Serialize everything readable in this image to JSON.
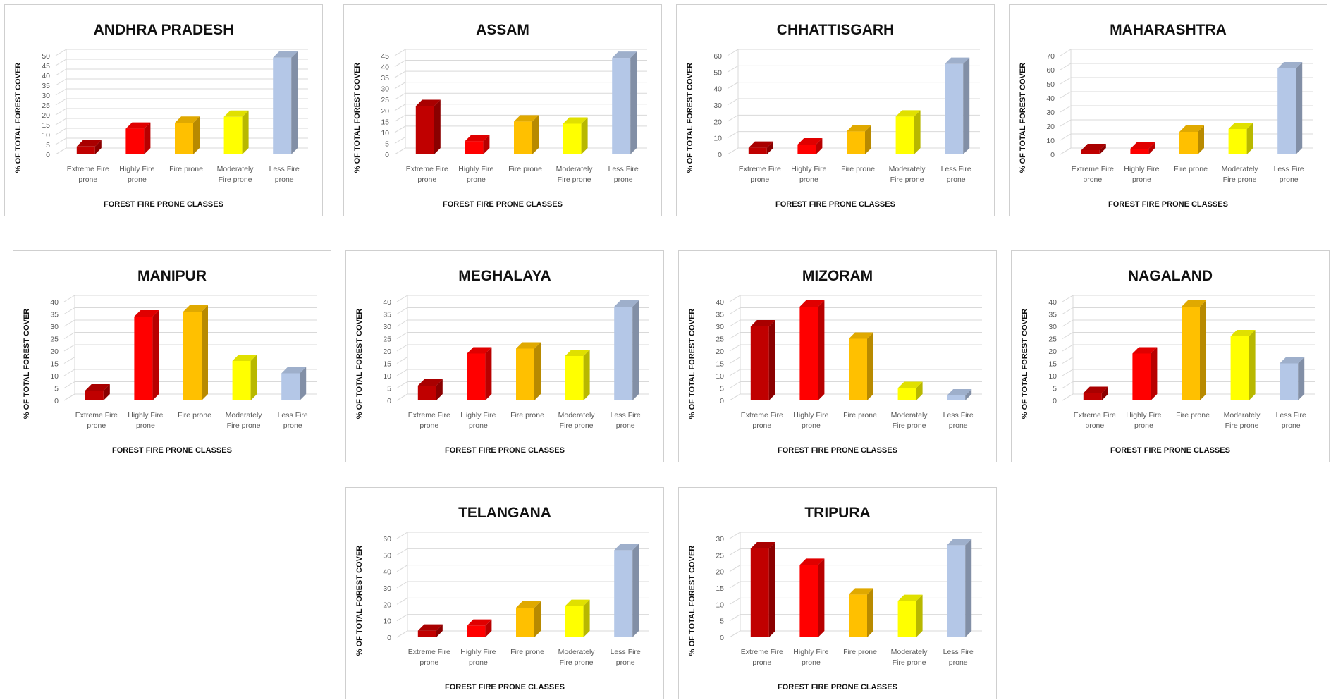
{
  "chart_data": [
    {
      "type": "bar",
      "title": "ANDHRA PRADESH",
      "ylabel": "% OF TOTAL FOREST COVER",
      "xlabel": "FOREST FIRE PRONE CLASSES",
      "categories": [
        "Extreme Fire prone",
        "Highly Fire prone",
        "Fire prone",
        "Moderately Fire prone",
        "Less Fire prone"
      ],
      "values": [
        4,
        13,
        16,
        19,
        49
      ],
      "yticks": [
        0,
        5,
        10,
        15,
        20,
        25,
        30,
        35,
        40,
        45,
        50
      ],
      "ylim": [
        0,
        50
      ]
    },
    {
      "type": "bar",
      "title": "ASSAM",
      "ylabel": "% OF TOTAL FOREST COVER",
      "xlabel": "FOREST FIRE PRONE CLASSES",
      "categories": [
        "Extreme Fire prone",
        "Highly Fire prone",
        "Fire prone",
        "Moderately Fire prone",
        "Less Fire prone"
      ],
      "values": [
        22,
        6,
        15,
        14,
        44
      ],
      "yticks": [
        0,
        5,
        10,
        15,
        20,
        25,
        30,
        35,
        40,
        45
      ],
      "ylim": [
        0,
        45
      ]
    },
    {
      "type": "bar",
      "title": "CHHATTISGARH",
      "ylabel": "% OF TOTAL FOREST COVER",
      "xlabel": "FOREST FIRE PRONE CLASSES",
      "categories": [
        "Extreme Fire prone",
        "Highly Fire prone",
        "Fire prone",
        "Moderately Fire prone",
        "Less Fire prone"
      ],
      "values": [
        4,
        6,
        14,
        23,
        55
      ],
      "yticks": [
        0,
        10,
        20,
        30,
        40,
        50,
        60
      ],
      "ylim": [
        0,
        60
      ]
    },
    {
      "type": "bar",
      "title": "MAHARASHTRA",
      "ylabel": "% OF TOTAL FOREST COVER",
      "xlabel": "FOREST FIRE PRONE CLASSES",
      "categories": [
        "Extreme Fire prone",
        "Highly Fire prone",
        "Fire prone",
        "Moderately Fire prone",
        "Less Fire prone"
      ],
      "values": [
        3,
        4,
        16,
        18,
        61
      ],
      "yticks": [
        0,
        10,
        20,
        30,
        40,
        50,
        60,
        70
      ],
      "ylim": [
        0,
        70
      ]
    },
    {
      "type": "bar",
      "title": "MANIPUR",
      "ylabel": "% OF TOTAL FOREST COVER",
      "xlabel": "FOREST FIRE PRONE CLASSES",
      "categories": [
        "Extreme Fire prone",
        "Highly Fire prone",
        "Fire prone",
        "Moderately Fire prone",
        "Less Fire prone"
      ],
      "values": [
        4,
        34,
        36,
        16,
        11
      ],
      "yticks": [
        0,
        5,
        10,
        15,
        20,
        25,
        30,
        35,
        40
      ],
      "ylim": [
        0,
        40
      ]
    },
    {
      "type": "bar",
      "title": "MEGHALAYA",
      "ylabel": "% OF TOTAL FOREST COVER",
      "xlabel": "FOREST FIRE PRONE CLASSES",
      "categories": [
        "Extreme Fire prone",
        "Highly Fire prone",
        "Fire prone",
        "Moderately Fire prone",
        "Less Fire prone"
      ],
      "values": [
        6,
        19,
        21,
        18,
        38
      ],
      "yticks": [
        0,
        5,
        10,
        15,
        20,
        25,
        30,
        35,
        40
      ],
      "ylim": [
        0,
        40
      ]
    },
    {
      "type": "bar",
      "title": "MIZORAM",
      "ylabel": "% OF TOTAL FOREST COVER",
      "xlabel": "FOREST FIRE PRONE CLASSES",
      "categories": [
        "Extreme Fire prone",
        "Highly Fire prone",
        "Fire prone",
        "Moderately Fire prone",
        "Less Fire prone"
      ],
      "values": [
        30,
        38,
        25,
        5,
        2
      ],
      "yticks": [
        0,
        5,
        10,
        15,
        20,
        25,
        30,
        35,
        40
      ],
      "ylim": [
        0,
        40
      ]
    },
    {
      "type": "bar",
      "title": "NAGALAND",
      "ylabel": "% OF TOTAL FOREST COVER",
      "xlabel": "FOREST FIRE PRONE CLASSES",
      "categories": [
        "Extreme Fire prone",
        "Highly Fire prone",
        "Fire prone",
        "Moderately Fire prone",
        "Less Fire prone"
      ],
      "values": [
        3,
        19,
        38,
        26,
        15
      ],
      "yticks": [
        0,
        5,
        10,
        15,
        20,
        25,
        30,
        35,
        40
      ],
      "ylim": [
        0,
        40
      ]
    },
    {
      "type": "bar",
      "title": "TELANGANA",
      "ylabel": "% OF TOTAL FOREST COVER",
      "xlabel": "FOREST FIRE PRONE CLASSES",
      "categories": [
        "Extreme Fire prone",
        "Highly Fire prone",
        "Fire prone",
        "Moderately Fire prone",
        "Less Fire prone"
      ],
      "values": [
        4,
        7,
        18,
        19,
        53
      ],
      "yticks": [
        0,
        10,
        20,
        30,
        40,
        50,
        60
      ],
      "ylim": [
        0,
        60
      ]
    },
    {
      "type": "bar",
      "title": "TRIPURA",
      "ylabel": "% OF TOTAL FOREST COVER",
      "xlabel": "FOREST FIRE PRONE CLASSES",
      "categories": [
        "Extreme Fire prone",
        "Highly Fire prone",
        "Fire prone",
        "Moderately Fire prone",
        "Less Fire prone"
      ],
      "values": [
        27,
        22,
        13,
        11,
        28
      ],
      "yticks": [
        0,
        5,
        10,
        15,
        20,
        25,
        30
      ],
      "ylim": [
        0,
        30
      ]
    }
  ],
  "category_labels": [
    [
      "Extreme Fire",
      "prone"
    ],
    [
      "Highly Fire",
      "prone"
    ],
    [
      "Fire prone",
      ""
    ],
    [
      "Moderately",
      "Fire prone"
    ],
    [
      "Less Fire",
      "prone"
    ]
  ],
  "colors": {
    "bars": [
      "#c00000",
      "#ff0000",
      "#ffc000",
      "#ffff00",
      "#b4c7e7"
    ],
    "grid": "#d9d9d9",
    "tick_text": "#595959"
  }
}
